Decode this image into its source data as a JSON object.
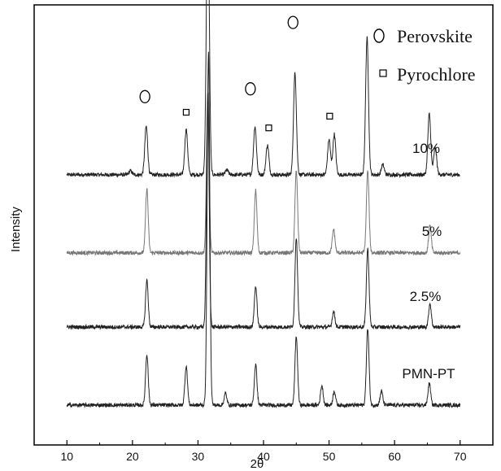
{
  "chart_data": {
    "type": "line",
    "xlabel": "2θ",
    "ylabel": "Intensity",
    "xlim": [
      5,
      75
    ],
    "xticks": [
      10,
      20,
      30,
      40,
      50,
      60,
      70
    ],
    "legend": {
      "placement": "top-right",
      "entries": [
        {
          "symbol": "circle",
          "label": "Perovskite"
        },
        {
          "symbol": "square",
          "label": "Pyrochlore"
        }
      ]
    },
    "series": [
      {
        "name": "10%",
        "offset": 2.95,
        "peaks": [
          {
            "x": 19.7,
            "h": 0.05,
            "w": 0.22
          },
          {
            "x": 22.1,
            "h": 0.62,
            "w": 0.22
          },
          {
            "x": 28.2,
            "h": 0.58,
            "w": 0.22
          },
          {
            "x": 31.5,
            "h": 3.6,
            "w": 0.22
          },
          {
            "x": 34.4,
            "h": 0.06,
            "w": 0.22
          },
          {
            "x": 38.7,
            "h": 0.62,
            "w": 0.22
          },
          {
            "x": 40.6,
            "h": 0.38,
            "w": 0.22
          },
          {
            "x": 44.8,
            "h": 1.3,
            "w": 0.22
          },
          {
            "x": 50.0,
            "h": 0.45,
            "w": 0.22
          },
          {
            "x": 50.8,
            "h": 0.52,
            "w": 0.22
          },
          {
            "x": 55.8,
            "h": 1.75,
            "w": 0.22
          },
          {
            "x": 58.2,
            "h": 0.13,
            "w": 0.22
          },
          {
            "x": 65.3,
            "h": 0.78,
            "w": 0.22
          },
          {
            "x": 66.2,
            "h": 0.35,
            "w": 0.22
          }
        ]
      },
      {
        "name": "5%",
        "offset": 1.95,
        "peaks": [
          {
            "x": 22.2,
            "h": 0.82,
            "w": 0.2
          },
          {
            "x": 31.5,
            "h": 1.95,
            "w": 0.2
          },
          {
            "x": 38.8,
            "h": 0.8,
            "w": 0.2
          },
          {
            "x": 45.0,
            "h": 1.05,
            "w": 0.2
          },
          {
            "x": 50.7,
            "h": 0.3,
            "w": 0.2
          },
          {
            "x": 55.9,
            "h": 1.05,
            "w": 0.2
          },
          {
            "x": 65.4,
            "h": 0.35,
            "w": 0.2
          }
        ]
      },
      {
        "name": "2.5%",
        "offset": 1.0,
        "peaks": [
          {
            "x": 22.2,
            "h": 0.6,
            "w": 0.2
          },
          {
            "x": 31.5,
            "h": 3.0,
            "w": 0.2
          },
          {
            "x": 38.8,
            "h": 0.52,
            "w": 0.2
          },
          {
            "x": 45.0,
            "h": 1.15,
            "w": 0.2
          },
          {
            "x": 50.7,
            "h": 0.2,
            "w": 0.2
          },
          {
            "x": 55.9,
            "h": 1.0,
            "w": 0.2
          },
          {
            "x": 65.4,
            "h": 0.3,
            "w": 0.2
          }
        ]
      },
      {
        "name": "PMN-PT",
        "offset": 0.0,
        "peaks": [
          {
            "x": 22.2,
            "h": 0.65,
            "w": 0.2
          },
          {
            "x": 28.2,
            "h": 0.5,
            "w": 0.2
          },
          {
            "x": 31.6,
            "h": 4.5,
            "w": 0.2
          },
          {
            "x": 34.2,
            "h": 0.15,
            "w": 0.2
          },
          {
            "x": 38.8,
            "h": 0.52,
            "w": 0.2
          },
          {
            "x": 45.0,
            "h": 0.88,
            "w": 0.2
          },
          {
            "x": 48.9,
            "h": 0.25,
            "w": 0.2
          },
          {
            "x": 50.8,
            "h": 0.18,
            "w": 0.2
          },
          {
            "x": 55.9,
            "h": 0.98,
            "w": 0.2
          },
          {
            "x": 58.0,
            "h": 0.18,
            "w": 0.2
          },
          {
            "x": 65.3,
            "h": 0.28,
            "w": 0.2
          }
        ]
      }
    ],
    "annotations": [
      {
        "symbol": "circle",
        "x": 21.9,
        "series": "10%",
        "y_above": 1.0
      },
      {
        "symbol": "square",
        "x": 28.2,
        "series": "10%",
        "y_above": 0.8
      },
      {
        "symbol": "circle",
        "x": 32.0,
        "series": "10%",
        "y_above": 4.6
      },
      {
        "symbol": "circle",
        "x": 38.0,
        "series": "10%",
        "y_above": 1.1
      },
      {
        "symbol": "square",
        "x": 40.8,
        "series": "10%",
        "y_above": 0.6
      },
      {
        "symbol": "circle",
        "x": 44.5,
        "series": "10%",
        "y_above": 1.95
      },
      {
        "symbol": "square",
        "x": 50.1,
        "series": "10%",
        "y_above": 0.75
      },
      {
        "symbol": "circle",
        "x": 55.4,
        "series": "10%",
        "y_above": 2.6
      }
    ]
  }
}
